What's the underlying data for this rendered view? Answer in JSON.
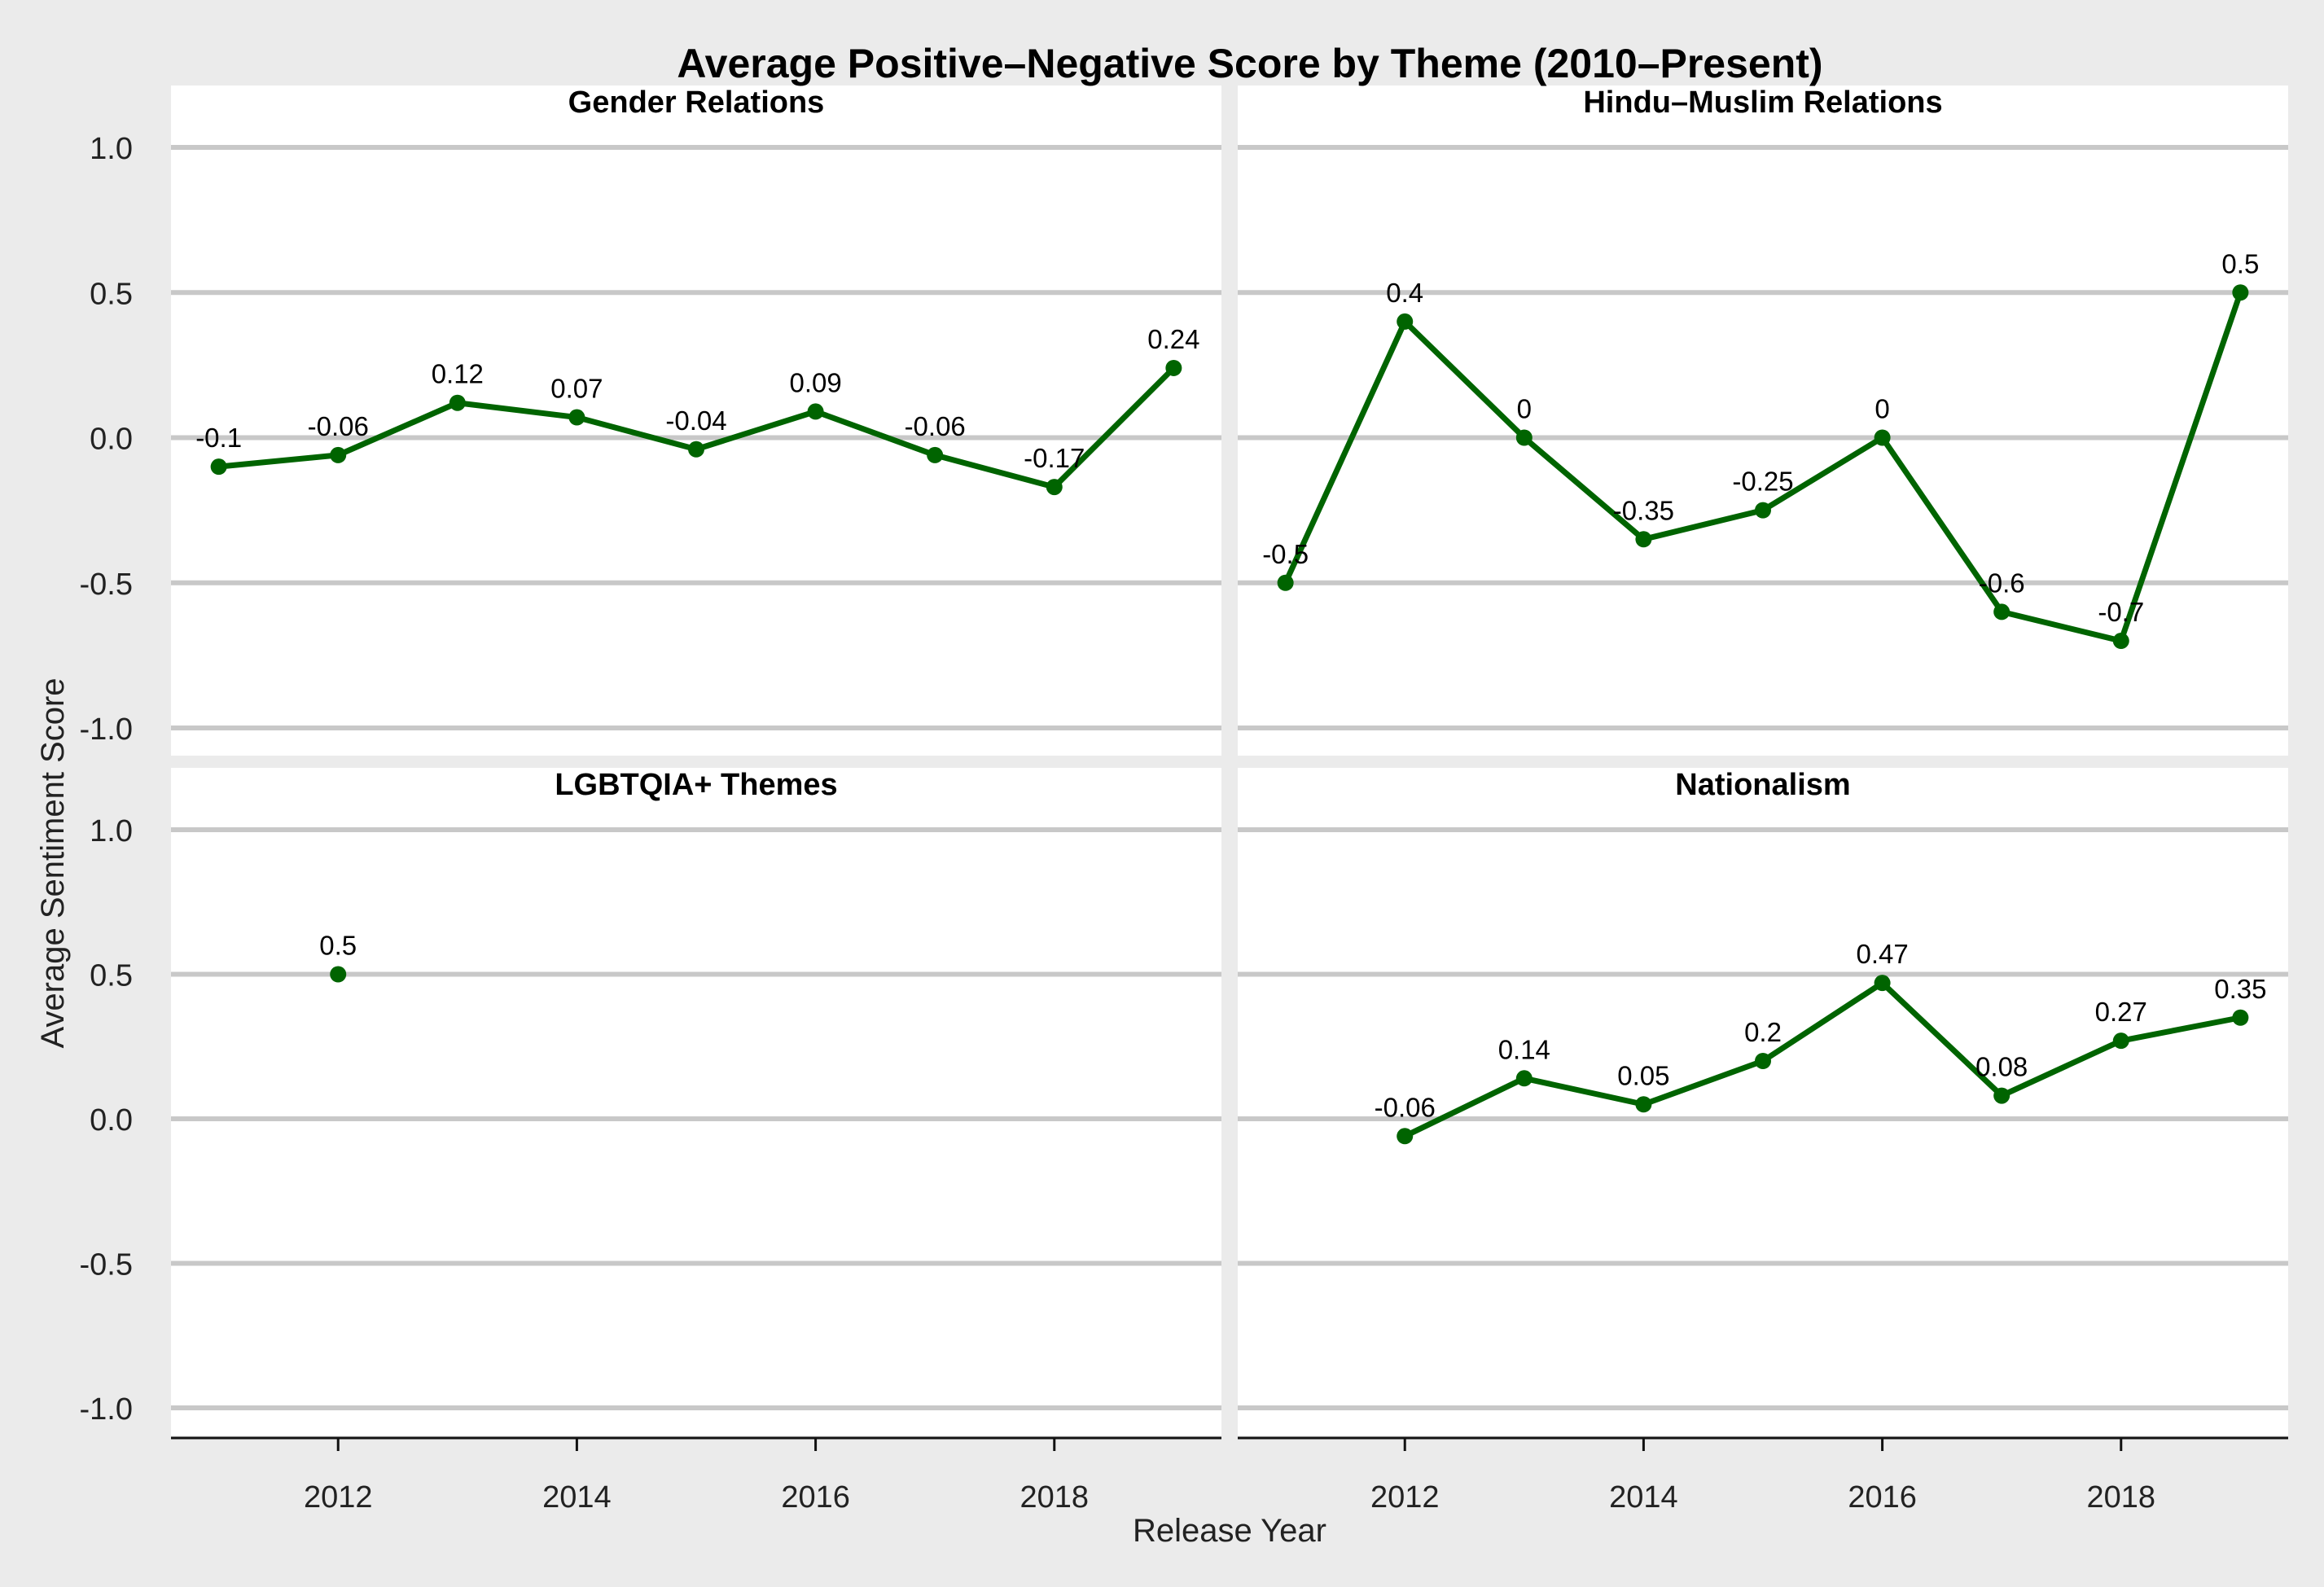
{
  "title": "Average Positive–Negative Score by Theme (2010–Present)",
  "xlabel": "Release Year",
  "ylabel": "Average Sentiment Score",
  "colors": {
    "background": "#ebebeb",
    "panel": "#ffffff",
    "grid": "#c8c8c8",
    "series": "#006400",
    "text": "#000000",
    "axis_text": "#222222"
  },
  "chart_data": {
    "type": "line",
    "facets": 2,
    "shared_y": true,
    "grid": true,
    "xlim": [
      2010.6,
      2019.4
    ],
    "ylim": [
      -1.1,
      1.2
    ],
    "x_ticks": [
      2012,
      2014,
      2016,
      2018
    ],
    "y_ticks": [
      -1.0,
      -0.5,
      0.0,
      0.5,
      1.0
    ],
    "y_tick_labels": [
      "-1.0",
      "-0.5",
      "0.0",
      "0.5",
      "1.0"
    ],
    "panels": [
      {
        "title": "Gender Relations",
        "x": [
          2011,
          2012,
          2013,
          2014,
          2015,
          2016,
          2017,
          2018,
          2019
        ],
        "y": [
          -0.1,
          -0.06,
          0.12,
          0.07,
          -0.04,
          0.09,
          -0.06,
          -0.17,
          0.24
        ],
        "labels": [
          "-0.1",
          "-0.06",
          "0.12",
          "0.07",
          "-0.04",
          "0.09",
          "-0.06",
          "-0.17",
          "0.24"
        ]
      },
      {
        "title": "Hindu–Muslim Relations",
        "x": [
          2011,
          2012,
          2013,
          2014,
          2015,
          2016,
          2017,
          2018,
          2019
        ],
        "y": [
          -0.5,
          0.4,
          0,
          -0.35,
          -0.25,
          0,
          -0.6,
          -0.7,
          0.5
        ],
        "labels": [
          "-0.5",
          "0.4",
          "0",
          "-0.35",
          "-0.25",
          "0",
          "-0.6",
          "-0.7",
          "0.5"
        ]
      },
      {
        "title": "LGBTQIA+ Themes",
        "x": [
          2012
        ],
        "y": [
          0.5
        ],
        "labels": [
          "0.5"
        ]
      },
      {
        "title": "Nationalism",
        "x": [
          2012,
          2013,
          2014,
          2015,
          2016,
          2017,
          2018,
          2019
        ],
        "y": [
          -0.06,
          0.14,
          0.05,
          0.2,
          0.47,
          0.08,
          0.27,
          0.35
        ],
        "labels": [
          "-0.06",
          "0.14",
          "0.05",
          "0.2",
          "0.47",
          "0.08",
          "0.27",
          "0.35"
        ]
      }
    ]
  }
}
